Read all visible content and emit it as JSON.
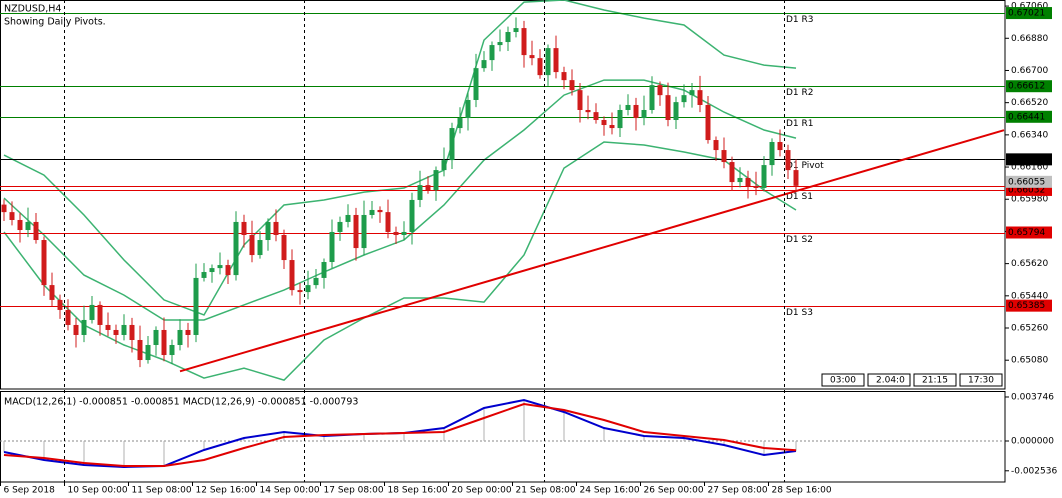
{
  "header": {
    "symbol": "NZDUSD,H4",
    "note": "Showing Daily Pivots."
  },
  "chart_data": [
    {
      "type": "candlestick",
      "up_color": "#1e9c4b",
      "down_color": "#d01c1c",
      "open": [
        0.6595,
        0.65908,
        0.65864,
        0.65808,
        0.65853,
        0.65752,
        0.655,
        0.65417,
        0.65361,
        0.65277,
        0.65221,
        0.65305,
        0.65389,
        0.65277,
        0.65249,
        0.65221,
        0.65277,
        0.65193,
        0.65081,
        0.65165,
        0.65249,
        0.65109,
        0.65165,
        0.65249,
        0.65221,
        0.6554,
        0.65573,
        0.65595,
        0.65612,
        0.65556,
        0.65853,
        0.6578,
        0.65668,
        0.65752,
        0.65853,
        0.6578,
        0.6564,
        0.65472,
        0.65461,
        0.655,
        0.6554,
        0.65629,
        0.65797,
        0.65853,
        0.65892,
        0.65707,
        0.65892,
        0.6592,
        0.65908,
        0.65797,
        0.6578,
        0.65797,
        0.65976,
        0.66059,
        0.66031,
        0.66143,
        0.66199,
        0.66378,
        0.66434,
        0.66535,
        0.66713,
        0.66758,
        0.66842,
        0.66859,
        0.66915,
        0.66937,
        0.66786,
        0.66769,
        0.66674,
        0.66825,
        0.66691,
        0.66646,
        0.6659,
        0.66479,
        0.66467,
        0.66423,
        0.66395,
        0.66378,
        0.66479,
        0.66507,
        0.66434,
        0.66479,
        0.66618,
        0.66562,
        0.66423,
        0.66523,
        0.66562,
        0.6659,
        0.66507,
        0.66311,
        0.66255,
        0.66188,
        0.66076,
        0.66099,
        0.66054,
        0.66043,
        0.66171,
        0.663,
        0.66255,
        0.66143
      ],
      "high": [
        0.6598,
        0.65968,
        0.65904,
        0.65933,
        0.65903,
        0.65772,
        0.6557,
        0.65447,
        0.65421,
        0.65317,
        0.65385,
        0.65439,
        0.65409,
        0.65347,
        0.65279,
        0.65337,
        0.65317,
        0.65273,
        0.65215,
        0.65269,
        0.65319,
        0.65195,
        0.65309,
        0.65289,
        0.6562,
        0.65623,
        0.65615,
        0.65682,
        0.65642,
        0.65913,
        0.65893,
        0.6586,
        0.65802,
        0.65873,
        0.65923,
        0.6581,
        0.657,
        0.65512,
        0.6558,
        0.6559,
        0.65649,
        0.65867,
        0.65883,
        0.65952,
        0.65932,
        0.65972,
        0.6597,
        0.6594,
        0.65978,
        0.65827,
        0.65857,
        0.66016,
        0.66139,
        0.66109,
        0.66163,
        0.66269,
        0.66408,
        0.66494,
        0.66575,
        0.66793,
        0.66808,
        0.66862,
        0.66929,
        0.66945,
        0.66997,
        0.66977,
        0.66866,
        0.66819,
        0.66845,
        0.66895,
        0.66721,
        0.66706,
        0.6663,
        0.66559,
        0.66517,
        0.66443,
        0.66465,
        0.66509,
        0.66567,
        0.66547,
        0.66559,
        0.66668,
        0.66638,
        0.66632,
        0.66553,
        0.66622,
        0.6663,
        0.6667,
        0.66557,
        0.66331,
        0.66325,
        0.66218,
        0.66159,
        0.66139,
        0.66134,
        0.66221,
        0.6632,
        0.6637,
        0.66285,
        0.66203
      ],
      "low": [
        0.65858,
        0.65834,
        0.65738,
        0.65768,
        0.65732,
        0.6544,
        0.65382,
        0.65311,
        0.65247,
        0.65151,
        0.65181,
        0.65285,
        0.65217,
        0.65214,
        0.65171,
        0.65191,
        0.65123,
        0.65041,
        0.65061,
        0.65105,
        0.65074,
        0.65059,
        0.65135,
        0.65151,
        0.65181,
        0.6552,
        0.65513,
        0.6556,
        0.65506,
        0.65526,
        0.6571,
        0.65628,
        0.65648,
        0.65692,
        0.65745,
        0.6559,
        0.65442,
        0.65391,
        0.65421,
        0.6548,
        0.6548,
        0.65594,
        0.65747,
        0.65823,
        0.65637,
        0.65667,
        0.65872,
        0.65848,
        0.65762,
        0.6573,
        0.6575,
        0.65727,
        0.65936,
        0.66011,
        0.65971,
        0.66108,
        0.66149,
        0.66348,
        0.66364,
        0.66495,
        0.66693,
        0.66698,
        0.66807,
        0.66809,
        0.66885,
        0.66716,
        0.66729,
        0.66654,
        0.66614,
        0.66656,
        0.66596,
        0.6656,
        0.66409,
        0.66427,
        0.66403,
        0.66335,
        0.66343,
        0.66328,
        0.66449,
        0.66364,
        0.66394,
        0.66459,
        0.66502,
        0.66388,
        0.66373,
        0.66493,
        0.66492,
        0.66467,
        0.66291,
        0.66195,
        0.66153,
        0.66026,
        0.66046,
        0.65984,
        0.66003,
        0.66023,
        0.66111,
        0.6622,
        0.66093,
        0.66025
      ],
      "close": [
        0.65908,
        0.65864,
        0.65808,
        0.65853,
        0.65752,
        0.655,
        0.65417,
        0.65361,
        0.65277,
        0.65221,
        0.65305,
        0.65389,
        0.65277,
        0.65249,
        0.65221,
        0.65277,
        0.65193,
        0.65081,
        0.65165,
        0.65249,
        0.65109,
        0.65165,
        0.65249,
        0.65221,
        0.6554,
        0.65573,
        0.65595,
        0.65612,
        0.65556,
        0.65853,
        0.6578,
        0.65668,
        0.65752,
        0.65853,
        0.6578,
        0.6564,
        0.65472,
        0.65461,
        0.655,
        0.6554,
        0.65629,
        0.65797,
        0.65853,
        0.65892,
        0.65707,
        0.65892,
        0.6592,
        0.65908,
        0.65797,
        0.6578,
        0.65797,
        0.65976,
        0.66059,
        0.66031,
        0.66143,
        0.66199,
        0.66378,
        0.66434,
        0.66535,
        0.66713,
        0.66758,
        0.66842,
        0.66859,
        0.66915,
        0.66937,
        0.66786,
        0.66769,
        0.66674,
        0.66825,
        0.66691,
        0.66646,
        0.6659,
        0.66479,
        0.66467,
        0.66423,
        0.66395,
        0.66378,
        0.66479,
        0.66507,
        0.66434,
        0.66479,
        0.66618,
        0.66562,
        0.66423,
        0.66523,
        0.66562,
        0.6659,
        0.66507,
        0.66311,
        0.66255,
        0.66188,
        0.66076,
        0.66099,
        0.66054,
        0.66043,
        0.66171,
        0.663,
        0.66255,
        0.66143,
        0.66055
      ],
      "ylim": [
        0.64919,
        0.67094
      ],
      "yticks": [
        {
          "value": 0.6706,
          "label": "0.67060"
        },
        {
          "value": 0.6688,
          "label": "0.66880"
        },
        {
          "value": 0.667,
          "label": "0.66700"
        },
        {
          "value": 0.6652,
          "label": "0.66520"
        },
        {
          "value": 0.6634,
          "label": "0.66340"
        },
        {
          "value": 0.6616,
          "label": "0.66160"
        },
        {
          "value": 0.6598,
          "label": "0.65980"
        },
        {
          "value": 0.658,
          "label": "0.65800"
        },
        {
          "value": 0.6562,
          "label": "0.65620"
        },
        {
          "value": 0.6544,
          "label": "0.65440"
        },
        {
          "value": 0.6526,
          "label": "0.65260"
        },
        {
          "value": 0.6508,
          "label": "0.65080"
        }
      ],
      "xticks": [
        {
          "value": 0,
          "label": "6 Sep 2018"
        },
        {
          "value": 8,
          "label": "10 Sep 00:00"
        },
        {
          "value": 16,
          "label": "11 Sep 08:00"
        },
        {
          "value": 24,
          "label": "12 Sep 16:00"
        },
        {
          "value": 32,
          "label": "14 Sep 00:00"
        },
        {
          "value": 40,
          "label": "17 Sep 08:00"
        },
        {
          "value": 48,
          "label": "18 Sep 16:00"
        },
        {
          "value": 56,
          "label": "20 Sep 00:00"
        },
        {
          "value": 64,
          "label": "21 Sep 08:00"
        },
        {
          "value": 72,
          "label": "24 Sep 16:00"
        },
        {
          "value": 80,
          "label": "26 Sep 00:00"
        },
        {
          "value": 88,
          "label": "27 Sep 08:00"
        },
        {
          "value": 96,
          "label": "28 Sep 16:00"
        }
      ],
      "period_separators": [
        8,
        38,
        68,
        98
      ],
      "bands": {
        "color": "#3cb371",
        "x": [
          0,
          5,
          10,
          15,
          20,
          25,
          30,
          35,
          40,
          45,
          50,
          55,
          60,
          65,
          70,
          75,
          80,
          85,
          90,
          95,
          99
        ],
        "series": [
          {
            "values": [
              0.66227,
              0.66115,
              0.65892,
              0.6564,
              0.65417,
              0.65333,
              0.65724,
              0.65948,
              0.65976,
              0.6602,
              0.66043,
              0.66143,
              0.6687,
              0.67082,
              0.67094,
              0.67038,
              0.66993,
              0.66954,
              0.66786,
              0.6673,
              0.66713
            ]
          },
          {
            "values": [
              0.65987,
              0.6578,
              0.65556,
              0.65444,
              0.65305,
              0.65305,
              0.65389,
              0.65472,
              0.65573,
              0.65668,
              0.65752,
              0.65948,
              0.66199,
              0.66367,
              0.66562,
              0.66646,
              0.66646,
              0.6659,
              0.66467,
              0.66367,
              0.66322
            ]
          },
          {
            "values": [
              0.65797,
              0.655,
              0.65277,
              0.65165,
              0.65081,
              0.6498,
              0.65036,
              0.64969,
              0.65193,
              0.65316,
              0.65428,
              0.65428,
              0.65405,
              0.65668,
              0.66154,
              0.663,
              0.66283,
              0.66244,
              0.66199,
              0.66031,
              0.6592
            ]
          }
        ]
      },
      "levels": [
        {
          "name": "D1 R3",
          "value": 0.67021,
          "color": "#008000"
        },
        {
          "name": "D1 R2",
          "value": 0.66612,
          "color": "#008000"
        },
        {
          "name": "D1 R1",
          "value": 0.66441,
          "color": "#008000"
        },
        {
          "name": "D1 Pivot",
          "value": 0.66203,
          "color": "#000000"
        },
        {
          "name": "D1 S1",
          "value": 0.66032,
          "color": "#e00000"
        },
        {
          "name": "D1 S2",
          "value": 0.65794,
          "color": "#e00000"
        },
        {
          "name": "D1 S3",
          "value": 0.65385,
          "color": "#e00000"
        }
      ],
      "current_price": {
        "value": 0.66055,
        "color": "#e00000"
      },
      "trendline": {
        "x": [
          22,
          125
        ],
        "values": [
          0.65018,
          0.66366
        ],
        "color": "#e00000"
      }
    },
    {
      "type": "line",
      "title": "MACD(12,26,1) -0.000851 -0.000851 MACD(12,26,9) -0.000851 -0.000793",
      "x": [
        0,
        5,
        10,
        15,
        20,
        25,
        30,
        35,
        40,
        45,
        50,
        55,
        60,
        65,
        70,
        75,
        80,
        85,
        90,
        95,
        99
      ],
      "series": [
        {
          "color": "#0000cd",
          "values": [
            -0.000936,
            -0.001617,
            -0.002042,
            -0.002213,
            -0.002128,
            -0.000766,
            0.000255,
            0.000766,
            0.000426,
            0.000596,
            0.000681,
            0.001106,
            0.002808,
            0.003489,
            0.002468,
            0.001106,
            0.000426,
            0.000255,
            -0.00034,
            -0.001191,
            -0.000851
          ]
        },
        {
          "color": "#e00000",
          "values": [
            -0.001191,
            -0.001447,
            -0.001872,
            -0.002128,
            -0.002128,
            -0.001617,
            -0.000596,
            0.00034,
            0.000511,
            0.000596,
            0.000681,
            0.000766,
            0.001957,
            0.003149,
            0.002638,
            0.001787,
            0.000766,
            0.000426,
            8.5e-05,
            -0.000596,
            -0.000793
          ]
        }
      ],
      "histogram_color": "#b0b0b0",
      "ylim": [
        -0.00349,
        0.00417
      ],
      "yticks": [
        {
          "value": 0.003746,
          "label": "0.003746"
        },
        {
          "value": 0,
          "label": "0.000000"
        },
        {
          "value": -0.002536,
          "label": "-0.002536"
        }
      ]
    }
  ],
  "toolbar": {
    "labels": [
      "03:00",
      "2.04:0",
      "21:15",
      "17:30"
    ]
  }
}
